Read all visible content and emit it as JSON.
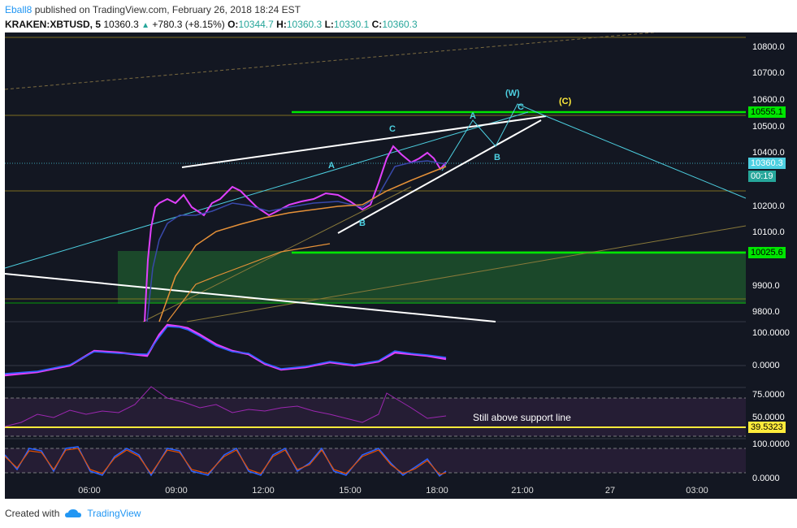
{
  "header": {
    "author": "Eball8",
    "published": " published on TradingView.com, February 26, 2018 18:24 EST"
  },
  "legend": {
    "symbol": "KRAKEN:XBTUSD, 5",
    "last": "10360.3",
    "change": "+780.3 (+8.15%)",
    "o_label": "O:",
    "o_value": "10344.7",
    "h_label": "H:",
    "h_value": "10360.3",
    "l_label": "L:",
    "l_value": "10330.1",
    "c_label": "C:",
    "c_value": "10360.3"
  },
  "price_axis": {
    "ticks": [
      "10800.0",
      "10700.0",
      "10600.0",
      "10500.0",
      "10400.0",
      "10200.0",
      "10100.0",
      "9900.0",
      "9800.0"
    ],
    "tags": {
      "resistance": "10555.1",
      "last": "10360.3",
      "countdown": "00:19",
      "support": "10025.6"
    }
  },
  "macd_axis": {
    "ticks": [
      "100.0000",
      "0.0000"
    ]
  },
  "rsi_axis": {
    "ticks": [
      "75.0000",
      "50.0000"
    ],
    "tag": "39.5323"
  },
  "stoch_axis": {
    "ticks": [
      "100.0000",
      "0.0000"
    ]
  },
  "time_axis": [
    "06:00",
    "09:00",
    "12:00",
    "15:00",
    "18:00",
    "21:00",
    "27",
    "03:00"
  ],
  "wave_labels": {
    "a1": "A",
    "b1": "B",
    "c1": "C",
    "a2": "A",
    "b2": "B",
    "c2": "C",
    "w": "(W)",
    "c_big": "(C)"
  },
  "annotation": "Still above support line",
  "footer": {
    "created": "Created with",
    "brand": "TradingView"
  },
  "colors": {
    "background": "#131722",
    "up": "#26a69a",
    "support_green": "#00e600",
    "cyan": "#4dd0e1",
    "yellow": "#ffeb3b",
    "magenta": "#e040fb"
  }
}
